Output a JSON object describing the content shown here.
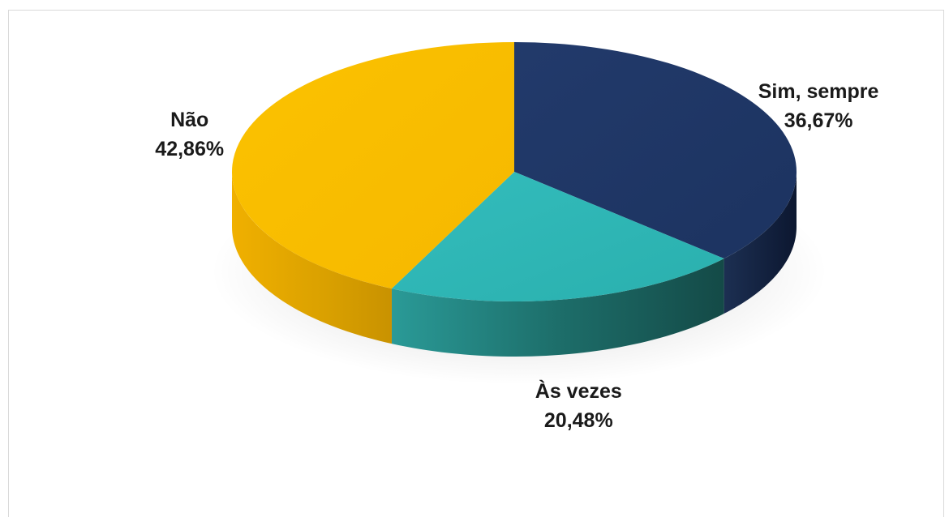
{
  "chart_data": {
    "type": "pie",
    "style": "3d",
    "title": "",
    "categories": [
      "Sim, sempre",
      "Às vezes",
      "Não"
    ],
    "values": [
      36.67,
      20.48,
      42.86
    ],
    "value_labels": [
      "36,67%",
      "20,48%",
      "42,86%"
    ],
    "colors": [
      "#1f3864",
      "#2eb5b5",
      "#f8bc00"
    ],
    "legend": "none",
    "data_labels": "outside"
  }
}
